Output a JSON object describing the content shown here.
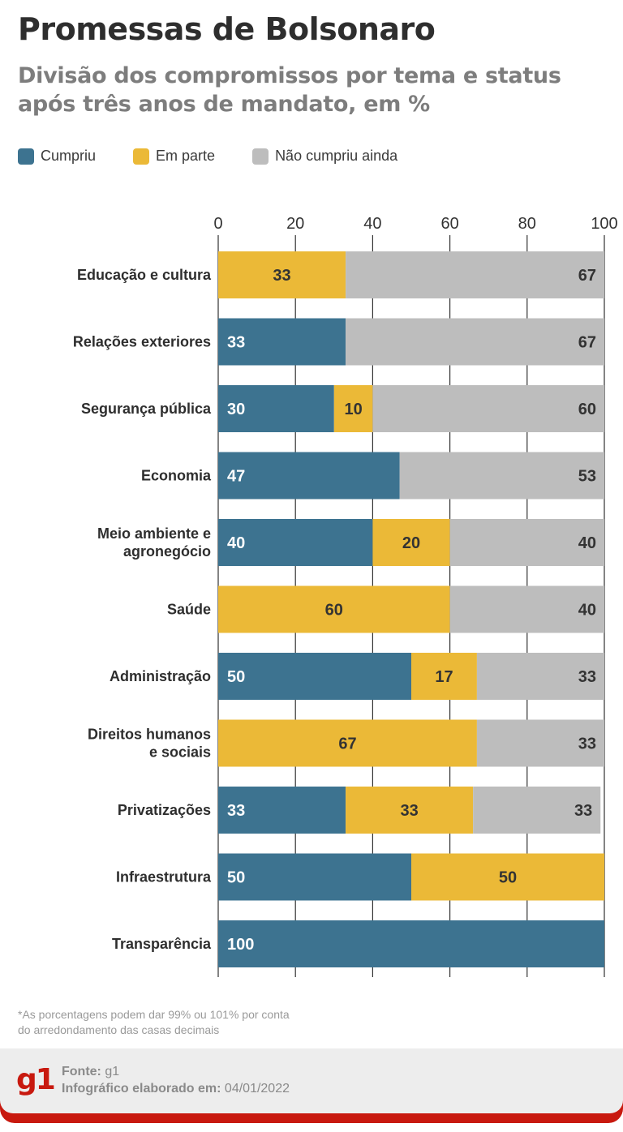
{
  "header": {
    "title": "Promessas de Bolsonaro",
    "subtitle": "Divisão dos compromissos por tema e status após três anos de mandato, em %"
  },
  "colors": {
    "cumpriu": "#3d7390",
    "em_parte": "#ebb937",
    "nao_cumpriu": "#bdbdbd",
    "brand_red": "#c8190f"
  },
  "legend": [
    {
      "key": "cumpriu",
      "label": "Cumpriu"
    },
    {
      "key": "em_parte",
      "label": "Em parte"
    },
    {
      "key": "nao_cumpriu",
      "label": "Não cumpriu ainda"
    }
  ],
  "chart_data": {
    "type": "bar",
    "orientation": "horizontal",
    "stacked": true,
    "title": "Promessas de Bolsonaro",
    "xlabel": "",
    "ylabel": "",
    "xlim": [
      0,
      100
    ],
    "xticks": [
      0,
      20,
      40,
      60,
      80,
      100
    ],
    "grid": true,
    "legend_position": "top-left",
    "categories": [
      "Educação e cultura",
      "Relações exteriores",
      "Segurança pública",
      "Economia",
      "Meio ambiente e agronegócio",
      "Saúde",
      "Administração",
      "Direitos humanos e sociais",
      "Privatizações",
      "Infraestrutura",
      "Transparência"
    ],
    "category_lines": [
      [
        "Educação e cultura"
      ],
      [
        "Relações exteriores"
      ],
      [
        "Segurança pública"
      ],
      [
        "Economia"
      ],
      [
        "Meio ambiente e",
        "agronegócio"
      ],
      [
        "Saúde"
      ],
      [
        "Administração"
      ],
      [
        "Direitos humanos",
        "e sociais"
      ],
      [
        "Privatizações"
      ],
      [
        "Infraestrutura"
      ],
      [
        "Transparência"
      ]
    ],
    "series": [
      {
        "name": "Cumpriu",
        "key": "cumpriu",
        "values": [
          0,
          33,
          30,
          47,
          40,
          0,
          50,
          0,
          33,
          50,
          100
        ]
      },
      {
        "name": "Em parte",
        "key": "em_parte",
        "values": [
          33,
          0,
          10,
          0,
          20,
          60,
          17,
          67,
          33,
          50,
          0
        ]
      },
      {
        "name": "Não cumpriu ainda",
        "key": "nao_cumpriu",
        "values": [
          67,
          67,
          60,
          53,
          40,
          40,
          33,
          33,
          33,
          0,
          0
        ]
      }
    ]
  },
  "note": {
    "line1": "*As porcentagens podem dar 99% ou 101% por conta",
    "line2": "do arredondamento das casas decimais"
  },
  "footer": {
    "logo": "g1",
    "source_label": "Fonte:",
    "source_value": "g1",
    "date_label": "Infográfico elaborado em:",
    "date_value": "04/01/2022"
  }
}
